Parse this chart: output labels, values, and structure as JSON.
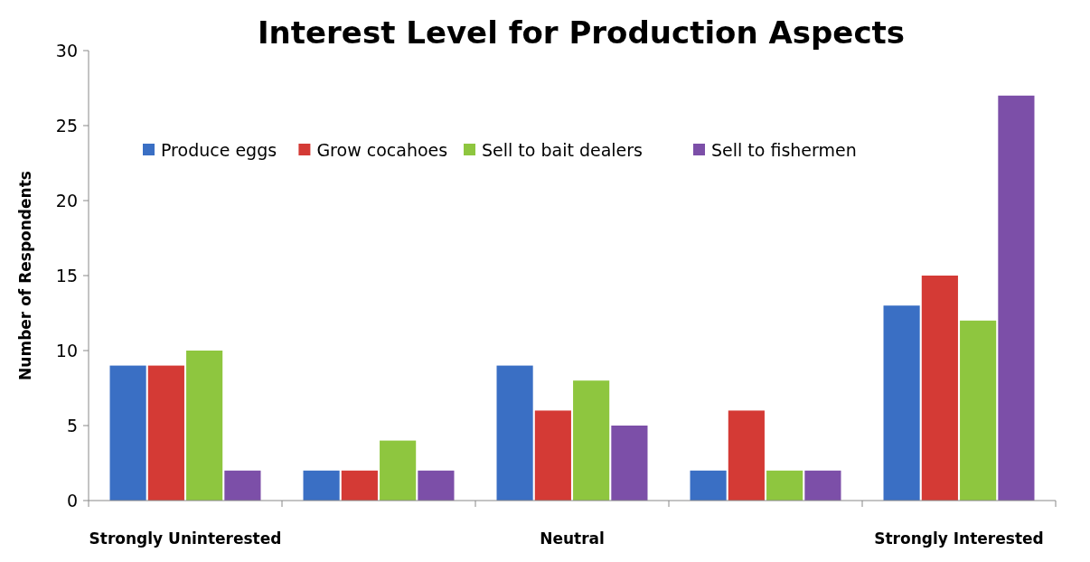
{
  "chart_data": {
    "type": "bar",
    "title": "Interest Level for Production Aspects",
    "ylabel": "Number of Respondents",
    "categories": [
      "Strongly Uninterested",
      null,
      "Neutral",
      null,
      "Strongly Interested"
    ],
    "series": [
      {
        "name": "Produce eggs",
        "color": "#3a6fc4",
        "values": [
          9,
          2,
          9,
          2,
          13
        ]
      },
      {
        "name": "Grow cocahoes",
        "color": "#d43a35",
        "values": [
          9,
          2,
          6,
          6,
          15
        ]
      },
      {
        "name": "Sell to bait dealers",
        "color": "#8ec63f",
        "values": [
          10,
          4,
          8,
          2,
          12
        ]
      },
      {
        "name": "Sell to fishermen",
        "color": "#7c4fa8",
        "values": [
          2,
          2,
          5,
          2,
          27
        ]
      }
    ],
    "ylim": [
      0,
      30
    ],
    "yticks": [
      0,
      5,
      10,
      15,
      20,
      25,
      30
    ],
    "grid": false,
    "legend": "top"
  }
}
